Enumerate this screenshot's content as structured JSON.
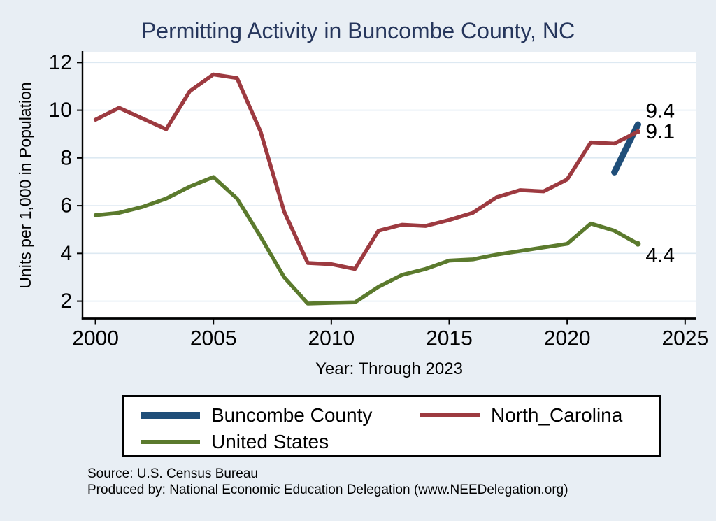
{
  "chart_data": {
    "type": "line",
    "title": "Permitting Activity in Buncombe County, NC",
    "xlabel": "Year: Through 2023",
    "ylabel": "Units per 1,000 in Population",
    "x_ticks": [
      2000,
      2005,
      2010,
      2015,
      2020,
      2025
    ],
    "y_ticks": [
      2,
      4,
      6,
      8,
      10,
      12
    ],
    "xlim": [
      1999.45,
      2025.45
    ],
    "ylim": [
      1.27,
      12.45
    ],
    "grid": "horizontal",
    "grid_color": "#dde9f2",
    "axis_color": "#000000",
    "plot_bg": "#ffffff",
    "legend_position": "bottom",
    "series": [
      {
        "name": "Buncombe County",
        "color": "#1f4e79",
        "x": [
          2022,
          2023
        ],
        "values": [
          7.4,
          9.4
        ],
        "end_label": "9.4"
      },
      {
        "name": "North_Carolina",
        "color": "#9d3a40",
        "x": [
          2000,
          2001,
          2002,
          2003,
          2004,
          2005,
          2006,
          2007,
          2008,
          2009,
          2010,
          2011,
          2012,
          2013,
          2014,
          2015,
          2016,
          2017,
          2018,
          2019,
          2020,
          2021,
          2022,
          2023
        ],
        "values": [
          9.6,
          10.1,
          9.65,
          9.2,
          10.8,
          11.5,
          11.35,
          9.1,
          5.75,
          3.6,
          3.55,
          3.35,
          4.95,
          5.2,
          5.15,
          5.4,
          5.7,
          6.35,
          6.65,
          6.6,
          7.1,
          8.65,
          8.6,
          9.1
        ],
        "end_label": "9.1"
      },
      {
        "name": "United States",
        "color": "#5b7a2d",
        "x": [
          2000,
          2001,
          2002,
          2003,
          2004,
          2005,
          2006,
          2007,
          2008,
          2009,
          2010,
          2011,
          2012,
          2013,
          2014,
          2015,
          2016,
          2017,
          2018,
          2019,
          2020,
          2021,
          2022,
          2023
        ],
        "values": [
          5.6,
          5.7,
          5.95,
          6.3,
          6.8,
          7.2,
          6.3,
          4.7,
          3.0,
          1.9,
          1.93,
          1.95,
          2.6,
          3.1,
          3.35,
          3.7,
          3.75,
          3.95,
          4.1,
          4.25,
          4.4,
          5.25,
          4.95,
          4.4
        ],
        "end_label": "4.4"
      }
    ]
  },
  "legend": {
    "items": [
      {
        "label": "Buncombe County",
        "color": "#1f4e79"
      },
      {
        "label": "North_Carolina",
        "color": "#9d3a40"
      },
      {
        "label": "United States",
        "color": "#5b7a2d"
      }
    ]
  },
  "footer": {
    "source": "Source: U.S. Census Bureau",
    "produced_by": "Produced by: National Economic Education Delegation (www.NEEDelegation.org)"
  }
}
